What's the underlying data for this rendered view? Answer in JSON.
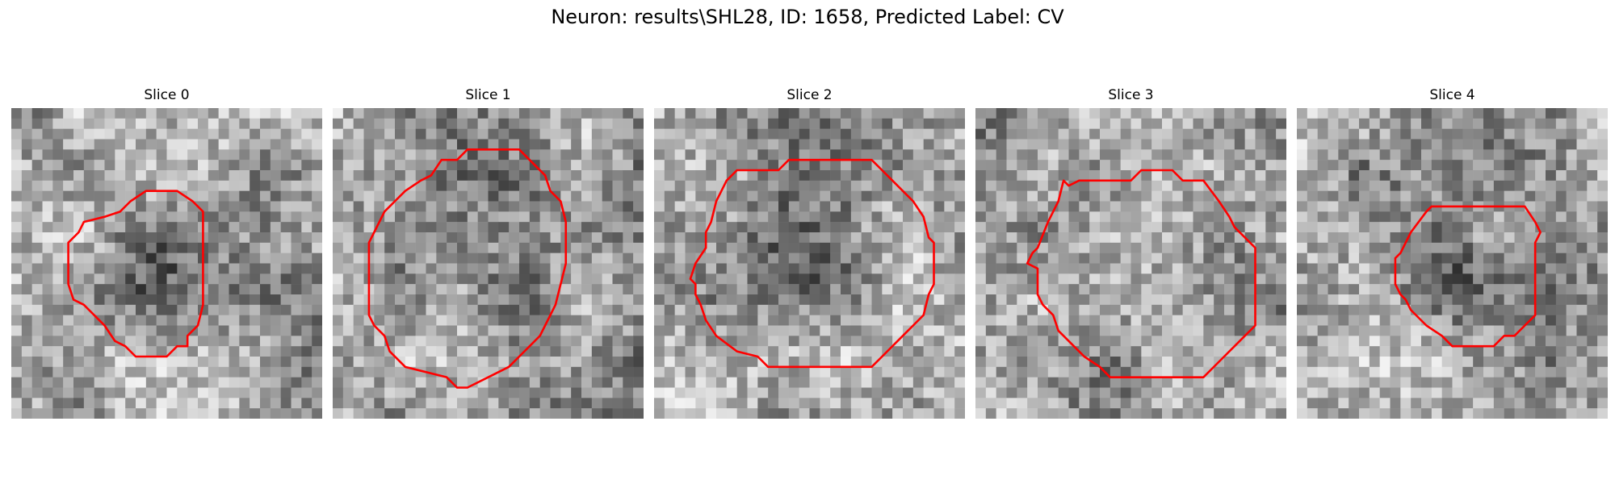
{
  "figure": {
    "title": "Neuron: results\\SHL28, ID: 1658, Predicted Label: CV",
    "outline_color": "#ff0000",
    "colormap": "grayscale"
  },
  "panels": [
    {
      "title": "Slice 0",
      "texture_seed": 11,
      "dark_center": 0.35,
      "dark_radius": 8
    },
    {
      "title": "Slice 1",
      "texture_seed": 23,
      "dark_center": 0.18,
      "dark_radius": 11
    },
    {
      "title": "Slice 2",
      "texture_seed": 37,
      "dark_center": 0.55,
      "dark_radius": 9
    },
    {
      "title": "Slice 3",
      "texture_seed": 41,
      "dark_center": 0.05,
      "dark_radius": 10
    },
    {
      "title": "Slice 4",
      "texture_seed": 53,
      "dark_center": 0.4,
      "dark_radius": 7
    }
  ]
}
